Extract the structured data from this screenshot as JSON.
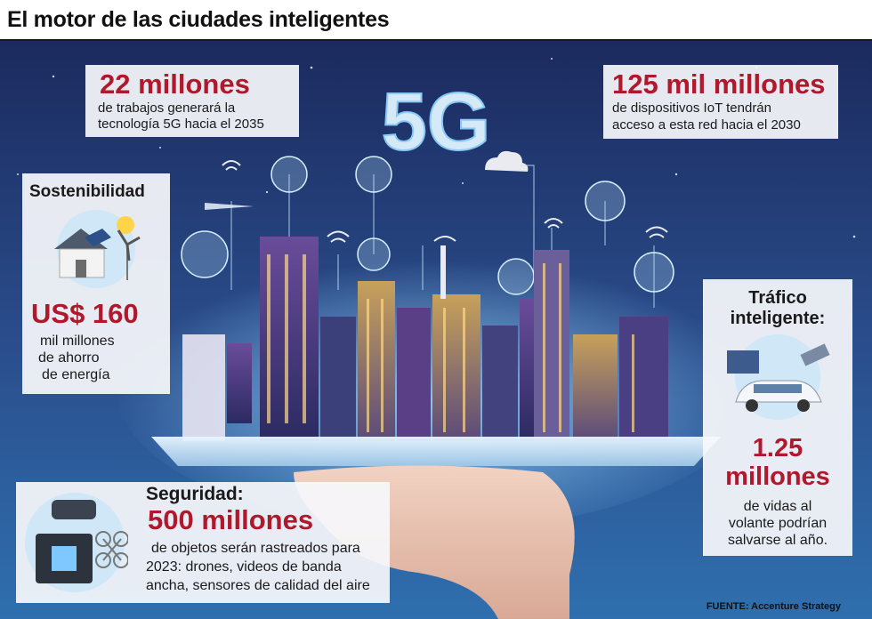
{
  "title": "El motor de las ciudades inteligentes",
  "hero_label": "5G",
  "jobs": {
    "value": "22 millones",
    "line1": "de trabajos generará la",
    "line2": "tecnología 5G hacia el 2035"
  },
  "iot": {
    "value": "125 mil millones",
    "line1": "de dispositivos IoT tendrán",
    "line2": "acceso a esta red hacia el 2030"
  },
  "sustainability": {
    "heading": "Sostenibilidad",
    "value": "US$ 160",
    "line1": "mil millones",
    "line2": "de ahorro",
    "line3": "de energía"
  },
  "traffic": {
    "heading_line1": "Tráfico",
    "heading_line2": "inteligente:",
    "value_line1": "1.25",
    "value_line2": "millones",
    "line1": "de vidas al",
    "line2": "volante podrían",
    "line3": "salvarse al año."
  },
  "security": {
    "heading": "Seguridad:",
    "value": "500 millones",
    "line1": "de objetos serán rastreados para",
    "line2": "2023: drones, videos de banda",
    "line3": "ancha, sensores de calidad del aire"
  },
  "source": "FUENTE: Accenture Strategy",
  "colors": {
    "accent_red": "#b0182b",
    "sky_top": "#1b2a5e",
    "sky_bottom": "#2f6fae",
    "panel": "#f6f7fb"
  }
}
